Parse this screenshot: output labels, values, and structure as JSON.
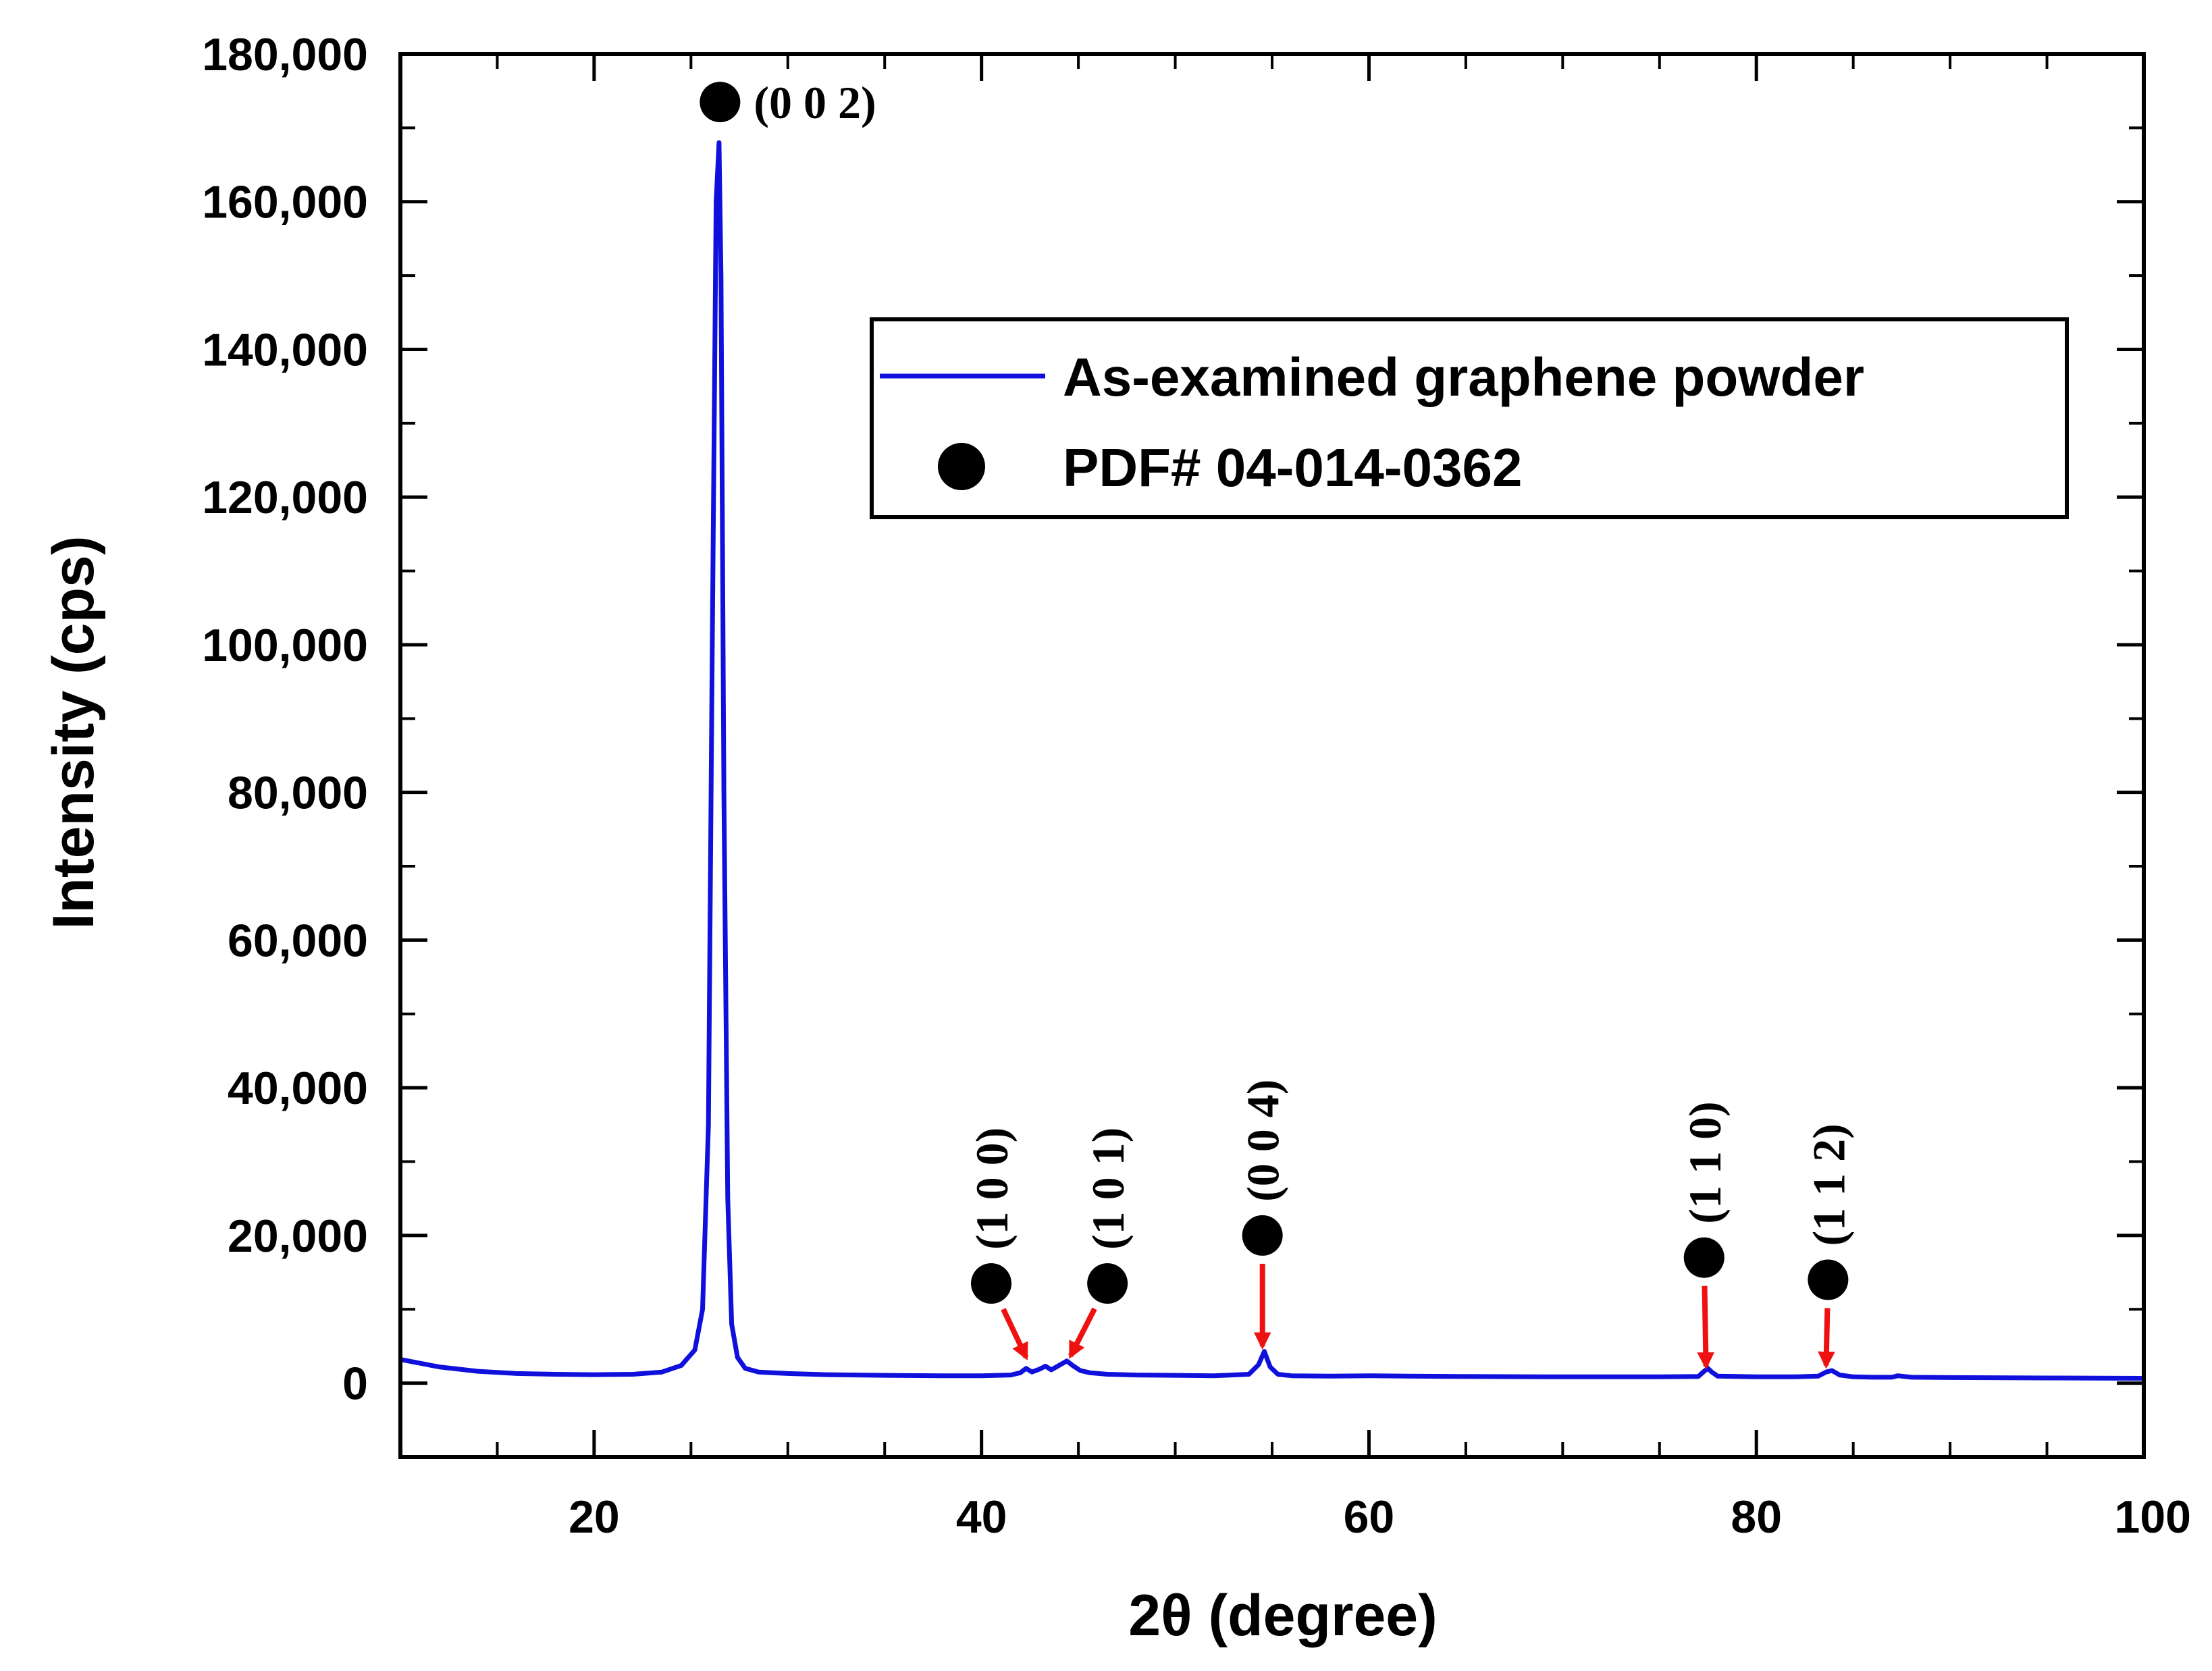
{
  "chart_data": {
    "type": "line",
    "title": "",
    "xlabel": "2θ (degree)",
    "ylabel": "Intensity (cps)",
    "xlim": [
      10,
      100
    ],
    "ylim": [
      -10000,
      180000
    ],
    "xticks": [
      20,
      40,
      60,
      80,
      100
    ],
    "xtick_labels": [
      "20",
      "40",
      "60",
      "80",
      "100"
    ],
    "yticks": [
      0,
      20000,
      40000,
      60000,
      80000,
      100000,
      120000,
      140000,
      160000,
      180000
    ],
    "ytick_labels": [
      "0",
      "20,000",
      "40,000",
      "60,000",
      "80,000",
      "100,000",
      "120,000",
      "140,000",
      "160,000",
      "180,000"
    ],
    "x_minor_step": 5,
    "y_minor_step": 10000,
    "grid": false,
    "legend_position": "top-right",
    "series": [
      {
        "name": "As-examined graphene powder",
        "color": "#1010dd",
        "x": [
          10,
          12,
          14,
          16,
          18,
          20,
          22,
          23.5,
          24.5,
          25.2,
          25.6,
          25.9,
          26.1,
          26.3,
          26.45,
          26.55,
          26.7,
          26.9,
          27.1,
          27.4,
          27.8,
          28.5,
          30,
          32,
          35,
          38,
          40,
          41.5,
          42.0,
          42.3,
          42.6,
          43.0,
          43.3,
          43.6,
          44.0,
          44.4,
          44.7,
          45.1,
          45.6,
          46.5,
          48,
          50,
          52,
          53.8,
          54.3,
          54.6,
          54.9,
          55.3,
          56,
          58,
          60,
          62,
          65,
          70,
          75,
          77.0,
          77.3,
          77.5,
          77.7,
          78.0,
          79,
          80,
          82,
          83.2,
          83.6,
          83.9,
          84.3,
          85,
          86,
          87.0,
          87.3,
          88,
          90,
          95,
          100
        ],
        "y": [
          3200,
          2200,
          1600,
          1300,
          1200,
          1150,
          1200,
          1500,
          2400,
          4500,
          10000,
          35000,
          100000,
          160000,
          168000,
          150000,
          80000,
          25000,
          8000,
          3500,
          2000,
          1500,
          1300,
          1150,
          1050,
          1000,
          1000,
          1100,
          1400,
          2000,
          1500,
          1900,
          2300,
          1800,
          2400,
          3000,
          2400,
          1700,
          1400,
          1200,
          1100,
          1050,
          1000,
          1200,
          2500,
          4300,
          2200,
          1200,
          1000,
          950,
          1000,
          950,
          900,
          850,
          850,
          900,
          1600,
          2000,
          1500,
          950,
          900,
          850,
          850,
          950,
          1500,
          1700,
          1100,
          850,
          800,
          800,
          1000,
          800,
          750,
          700,
          650
        ]
      }
    ],
    "reference": {
      "name": "PDF# 04-014-0362",
      "peaks": [
        {
          "hkl": "(0 0 2)",
          "x": 26.5,
          "marker_y": 173500,
          "label_orientation": "horizontal",
          "arrow": false
        },
        {
          "hkl": "(1 0 0)",
          "x": 40.5,
          "marker_y": 13500,
          "label_orientation": "vertical",
          "arrow": true,
          "arrow_to_x": 42.3,
          "arrow_to_y": 3500
        },
        {
          "hkl": "(1 0 1)",
          "x": 46.5,
          "marker_y": 13500,
          "label_orientation": "vertical",
          "arrow": true,
          "arrow_to_x": 44.6,
          "arrow_to_y": 3700
        },
        {
          "hkl": "(0 0 4)",
          "x": 54.5,
          "marker_y": 20000,
          "label_orientation": "vertical",
          "arrow": true,
          "arrow_to_x": 54.5,
          "arrow_to_y": 5000
        },
        {
          "hkl": "(1 1 0)",
          "x": 77.3,
          "marker_y": 17000,
          "label_orientation": "vertical",
          "arrow": true,
          "arrow_to_x": 77.4,
          "arrow_to_y": 2300
        },
        {
          "hkl": "(1 1 2)",
          "x": 83.7,
          "marker_y": 14000,
          "label_orientation": "vertical",
          "arrow": true,
          "arrow_to_x": 83.6,
          "arrow_to_y": 2400
        }
      ]
    }
  },
  "colors": {
    "line": "#1010dd",
    "arrow": "#ee1111",
    "marker": "#000000",
    "axis": "#000000",
    "background": "#ffffff"
  }
}
